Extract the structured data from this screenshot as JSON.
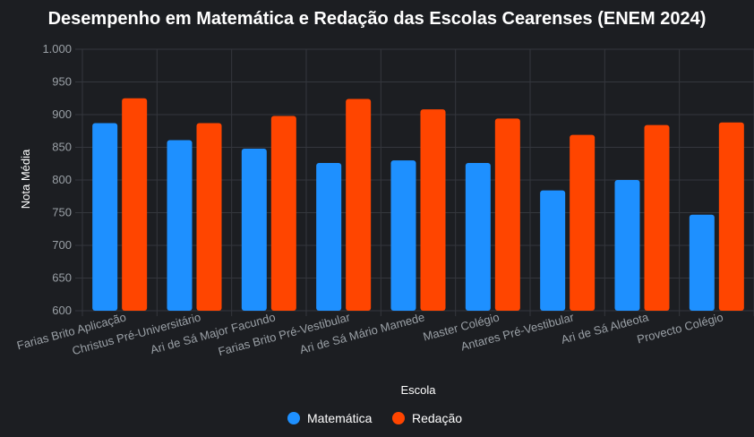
{
  "chart_data": {
    "type": "bar",
    "title": "Desempenho em Matemática e Redação das Escolas Cearenses (ENEM 2024)",
    "xlabel": "Escola",
    "ylabel": "Nota Média",
    "ylim": [
      600,
      1000
    ],
    "yticks": [
      "600",
      "650",
      "700",
      "750",
      "800",
      "850",
      "900",
      "950",
      "1.000"
    ],
    "grid": true,
    "legend_position": "bottom",
    "categories": [
      "Farias Brito Aplicação",
      "Christus Pré-Universitário",
      "Ari de Sá Major Facundo",
      "Farias Brito Pré-Vestibular",
      "Ari de Sá Mário Mamede",
      "Master Colégio",
      "Antares Pré-Vestibular",
      "Ari de Sá Aldeota",
      "Provecto Colégio"
    ],
    "series": [
      {
        "name": "Matemática",
        "color": "#1e90ff",
        "values": [
          887,
          861,
          848,
          826,
          830,
          826,
          784,
          800,
          747
        ]
      },
      {
        "name": "Redação",
        "color": "#ff4500",
        "values": [
          925,
          887,
          898,
          924,
          908,
          894,
          869,
          884,
          888
        ]
      }
    ]
  }
}
